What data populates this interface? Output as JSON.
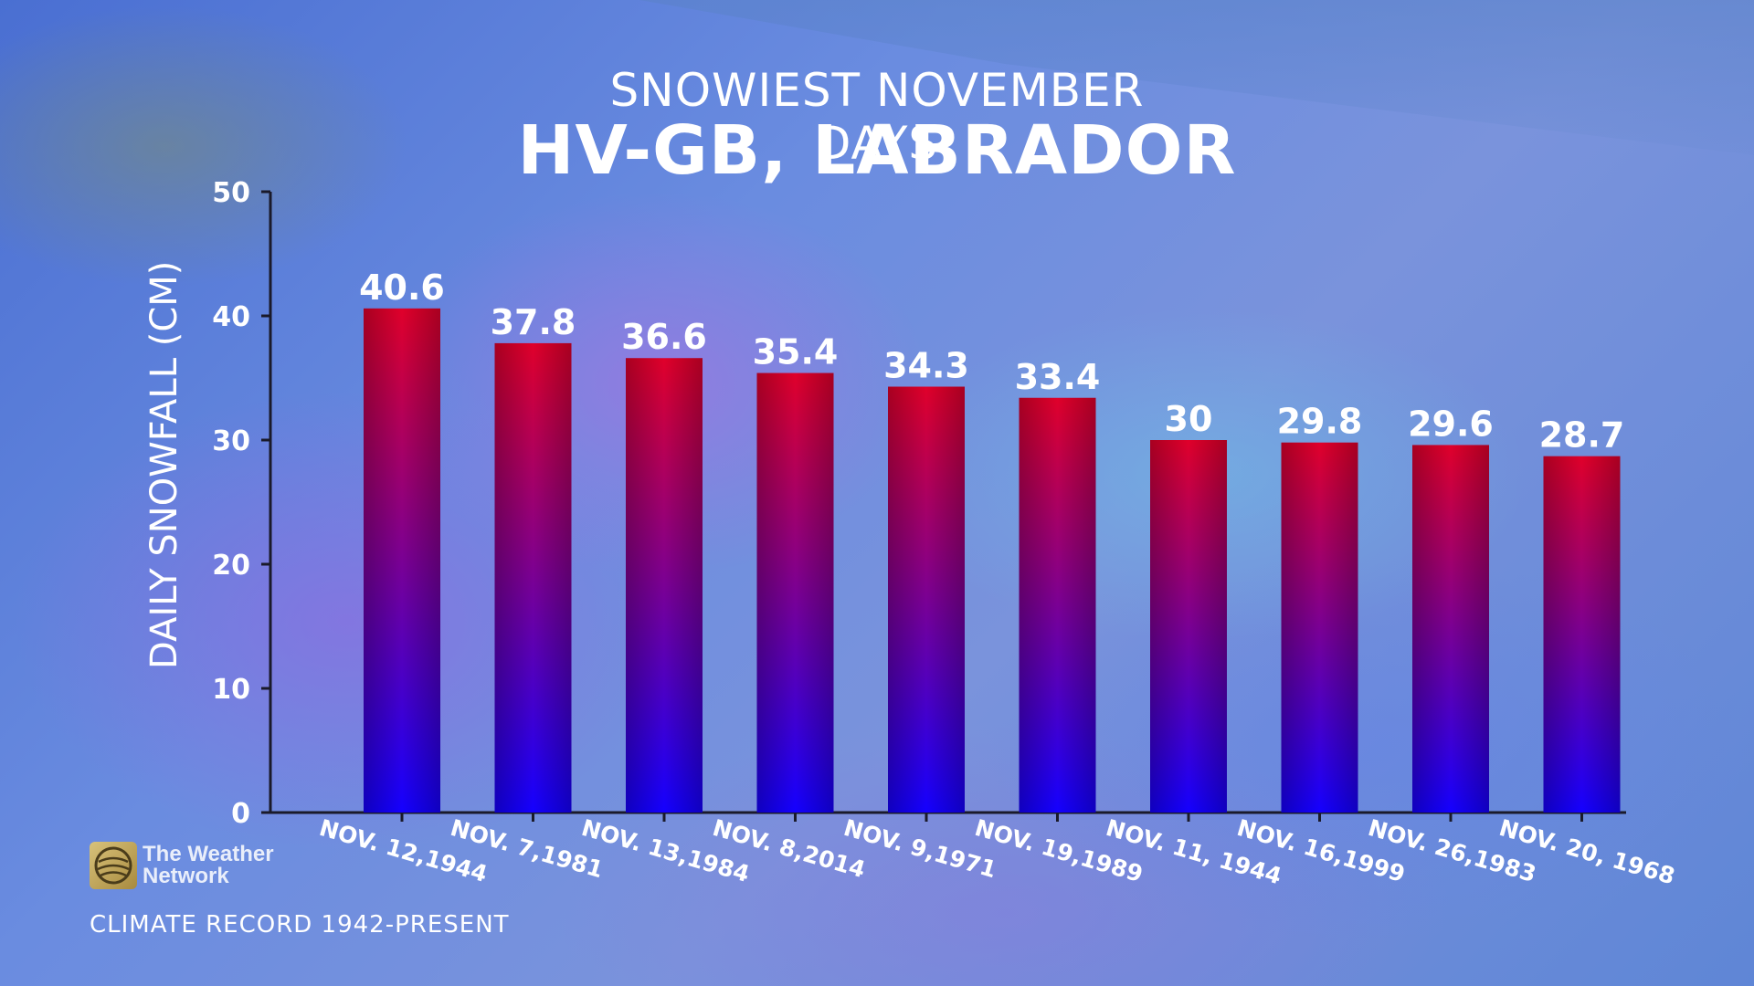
{
  "header": {
    "subtitle": "SNOWIEST NOVEMBER DAYS",
    "title": "HV-GB, LABRADOR"
  },
  "brand": {
    "name_line1": "The Weather",
    "name_line2": "Network",
    "logo_icon": "globe-icon"
  },
  "footer": {
    "note": "CLIMATE RECORD 1942-PRESENT"
  },
  "colors": {
    "bar_top": "#e0002a",
    "bar_bottom": "#1400ff",
    "text": "#ffffff"
  },
  "chart_data": {
    "type": "bar",
    "title": "HV-GB, LABRADOR",
    "subtitle": "SNOWIEST NOVEMBER DAYS",
    "ylabel": "DAILY SNOWFALL (CM)",
    "xlabel": "",
    "ylim": [
      0,
      50
    ],
    "yticks": [
      0,
      10,
      20,
      30,
      40,
      50
    ],
    "grid": false,
    "categories": [
      "NOV. 12,1944",
      "NOV. 7,1981",
      "NOV. 13,1984",
      "NOV. 8,2014",
      "NOV. 9,1971",
      "NOV. 19,1989",
      "NOV. 11, 1944",
      "NOV. 16,1999",
      "NOV. 26,1983",
      "NOV. 20, 1968"
    ],
    "values": [
      40.6,
      37.8,
      36.6,
      35.4,
      34.3,
      33.4,
      30,
      29.8,
      29.6,
      28.7
    ],
    "data_labels": [
      "40.6",
      "37.8",
      "36.6",
      "35.4",
      "34.3",
      "33.4",
      "30",
      "29.8",
      "29.6",
      "28.7"
    ]
  }
}
